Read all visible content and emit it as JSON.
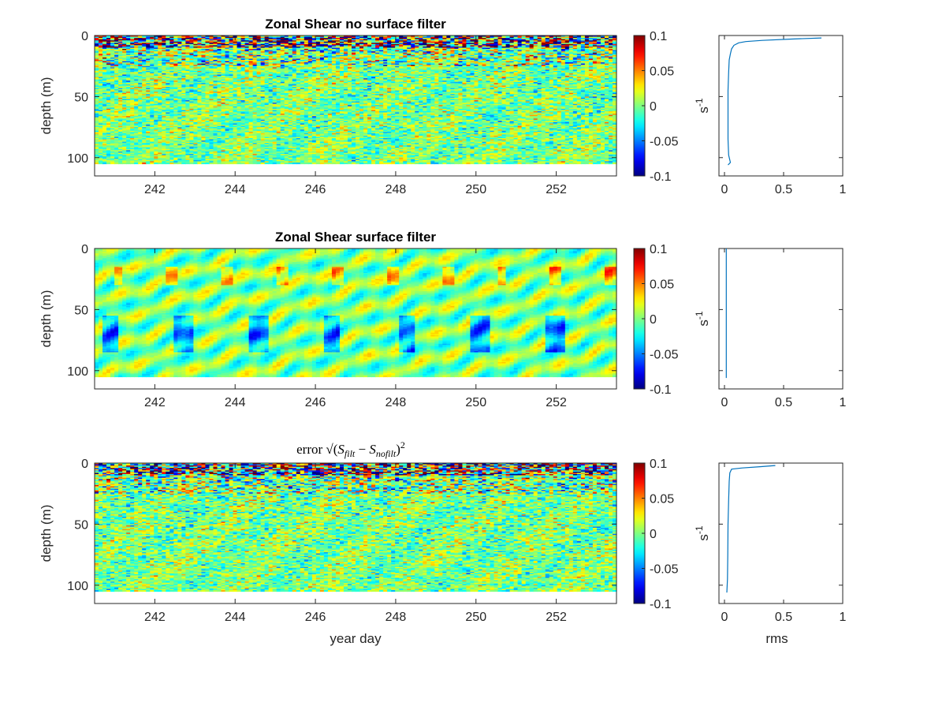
{
  "chart_data": [
    {
      "type": "heatmap",
      "title": "Zonal Shear no surface filter",
      "xlabel": "",
      "ylabel": "depth (m)",
      "xlim": [
        240.5,
        253.5
      ],
      "ylim": [
        115,
        0
      ],
      "data_depth_max": 105,
      "x_ticks": [
        "242",
        "244",
        "246",
        "248",
        "250",
        "252"
      ],
      "y_ticks": [
        "0",
        "50",
        "100"
      ],
      "character": "noisy",
      "colorbar": {
        "limits": [
          -0.1,
          0.1
        ],
        "ticks": [
          "0.1",
          "0.05",
          "0",
          "-0.05",
          "-0.1"
        ],
        "colormap": "jet"
      },
      "profile": {
        "type": "line",
        "xlabel": "",
        "ylabel": "s-1",
        "xlim": [
          0,
          1
        ],
        "x_ticks": [
          "0",
          "0.5",
          "1"
        ],
        "color": "#0072bd",
        "points": [
          [
            0.82,
            2
          ],
          [
            0.55,
            3
          ],
          [
            0.32,
            4
          ],
          [
            0.18,
            5
          ],
          [
            0.12,
            6
          ],
          [
            0.08,
            8
          ],
          [
            0.06,
            11
          ],
          [
            0.05,
            15
          ],
          [
            0.04,
            20
          ],
          [
            0.035,
            30
          ],
          [
            0.03,
            45
          ],
          [
            0.03,
            65
          ],
          [
            0.03,
            85
          ],
          [
            0.035,
            98
          ],
          [
            0.05,
            104
          ],
          [
            0.03,
            106
          ]
        ]
      }
    },
    {
      "type": "heatmap",
      "title": "Zonal Shear surface filter",
      "xlabel": "",
      "ylabel": "depth (m)",
      "xlim": [
        240.5,
        253.5
      ],
      "ylim": [
        115,
        0
      ],
      "data_depth_max": 105,
      "x_ticks": [
        "242",
        "244",
        "246",
        "248",
        "250",
        "252"
      ],
      "y_ticks": [
        "0",
        "50",
        "100"
      ],
      "character": "smooth",
      "colorbar": {
        "limits": [
          -0.1,
          0.1
        ],
        "ticks": [
          "0.1",
          "0.05",
          "0",
          "-0.05",
          "-0.1"
        ],
        "colormap": "jet"
      },
      "profile": {
        "type": "line",
        "xlabel": "",
        "ylabel": "s-1",
        "xlim": [
          0,
          1
        ],
        "x_ticks": [
          "0",
          "0.5",
          "1"
        ],
        "color": "#0072bd",
        "points": [
          [
            0.015,
            0
          ],
          [
            0.015,
            40
          ],
          [
            0.015,
            80
          ],
          [
            0.015,
            106
          ]
        ]
      }
    },
    {
      "type": "heatmap",
      "title": "error √((S_filt − S_nofilt)^2)",
      "title_parts": {
        "prefix": "error",
        "a": "S",
        "a_sub": "filt",
        "b": "S",
        "b_sub": "nofilt",
        "power": "2"
      },
      "xlabel": "year day",
      "ylabel": "depth (m)",
      "xlim": [
        240.5,
        253.5
      ],
      "ylim": [
        115,
        0
      ],
      "data_depth_max": 105,
      "x_ticks": [
        "242",
        "244",
        "246",
        "248",
        "250",
        "252"
      ],
      "y_ticks": [
        "0",
        "50",
        "100"
      ],
      "character": "noisy",
      "colorbar": {
        "limits": [
          -0.1,
          0.1
        ],
        "ticks": [
          "0.1",
          "0.05",
          "0",
          "-0.05",
          "-0.1"
        ],
        "colormap": "jet"
      },
      "profile": {
        "type": "line",
        "xlabel": "rms",
        "ylabel": "s-1",
        "xlim": [
          0,
          1
        ],
        "x_ticks": [
          "0",
          "0.5",
          "1"
        ],
        "color": "#0072bd",
        "points": [
          [
            0.43,
            2
          ],
          [
            0.3,
            3
          ],
          [
            0.15,
            4
          ],
          [
            0.06,
            5
          ],
          [
            0.045,
            8
          ],
          [
            0.04,
            15
          ],
          [
            0.035,
            30
          ],
          [
            0.03,
            50
          ],
          [
            0.028,
            75
          ],
          [
            0.025,
            95
          ],
          [
            0.02,
            106
          ]
        ]
      }
    }
  ]
}
